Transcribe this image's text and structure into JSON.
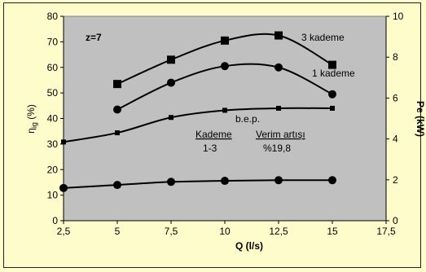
{
  "chart_data": {
    "type": "line",
    "xlabel": "Q (l/s)",
    "ylabel_left": "ηig (%)",
    "ylabel_left_main": "η",
    "ylabel_left_sub": "ig",
    "ylabel_left_unit": " (%)",
    "ylabel_right": "Pe (kW)",
    "xlim": [
      2.5,
      17.5
    ],
    "ylim_left": [
      0,
      80
    ],
    "ylim_right": [
      0,
      10
    ],
    "x_ticks": [
      "2,5",
      "5",
      "7,5",
      "10",
      "12,5",
      "15",
      "17,5"
    ],
    "x_tick_values": [
      2.5,
      5,
      7.5,
      10,
      12.5,
      15,
      17.5
    ],
    "y_left_ticks": [
      "0",
      "10",
      "20",
      "30",
      "40",
      "50",
      "60",
      "70",
      "80"
    ],
    "y_left_tick_values": [
      0,
      10,
      20,
      30,
      40,
      50,
      60,
      70,
      80
    ],
    "y_right_ticks": [
      "0",
      "2",
      "4",
      "6",
      "8",
      "10"
    ],
    "y_right_tick_values": [
      0,
      2,
      4,
      6,
      8,
      10
    ],
    "grid": false,
    "plot_background": "#c0c0c0",
    "series": [
      {
        "name": "3 kademe",
        "axis": "left",
        "marker": "square",
        "x": [
          5,
          7.5,
          10,
          12.5,
          15
        ],
        "y": [
          53.5,
          63,
          70.5,
          72.5,
          61
        ]
      },
      {
        "name": "1 kademe",
        "axis": "left",
        "marker": "circle",
        "x": [
          5,
          7.5,
          10,
          12.5,
          15
        ],
        "y": [
          43.5,
          54,
          60.5,
          60,
          49.5
        ]
      },
      {
        "name": "b.e.p.",
        "axis": "right",
        "marker": "small-square",
        "x": [
          2.5,
          5,
          7.5,
          10,
          12.5,
          15
        ],
        "y": [
          3.85,
          4.3,
          5.05,
          5.4,
          5.5,
          5.5
        ]
      },
      {
        "name": "",
        "axis": "right",
        "marker": "circle",
        "x": [
          2.5,
          5,
          7.5,
          10,
          12.5,
          15
        ],
        "y": [
          1.6,
          1.75,
          1.9,
          1.95,
          1.98,
          1.98
        ]
      }
    ],
    "annotations": {
      "z_label": "z=7",
      "series_label_3": "3 kademe",
      "series_label_1": "1 kademe",
      "bep_label": "b.e.p.",
      "kademe_header": "Kademe",
      "kademe_value": "1-3",
      "verim_header": "Verim artışı",
      "verim_value": "%19,8"
    }
  }
}
